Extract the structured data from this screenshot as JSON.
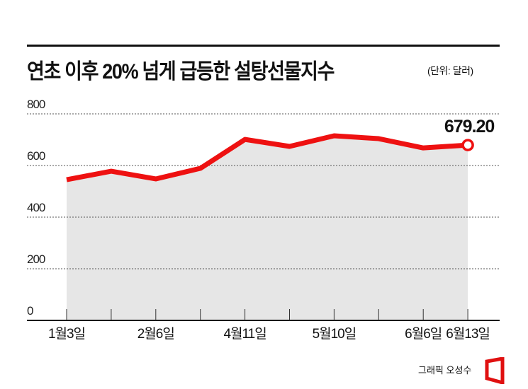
{
  "header": {
    "title": "연초 이후 20% 넘게 급등한 설탕선물지수",
    "unit": "(단위: 달러)"
  },
  "footer": {
    "credit": "그래픽 오성수"
  },
  "colors": {
    "line": "#ee1111",
    "fill": "#e6e6e6",
    "axis": "#111111",
    "grid": "#555555"
  },
  "chart_data": {
    "type": "area",
    "title": "연초 이후 20% 넘게 급등한 설탕선물지수",
    "unit": "달러",
    "xlabel": "",
    "ylabel": "",
    "ylim": [
      0,
      800
    ],
    "yticks": [
      0,
      200,
      400,
      600,
      800
    ],
    "grid": true,
    "x": [
      "1월3일",
      "",
      "2월6일",
      "",
      "4월11일",
      "",
      "5월10일",
      "",
      "6월6일",
      "6월13일"
    ],
    "x_tick_labels": [
      "1월3일",
      "2월6일",
      "4월11일",
      "5월10일",
      "6월6일",
      "6월13일"
    ],
    "values": [
      545,
      578,
      548,
      589,
      701,
      674,
      715,
      704,
      668,
      679.2
    ],
    "annotations": [
      {
        "x": "6월13일",
        "value": 679.2,
        "label": "679.20"
      }
    ]
  }
}
